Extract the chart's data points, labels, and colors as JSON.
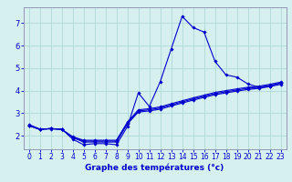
{
  "xlabel": "Graphe des températures (°c)",
  "bg_color": "#d6f0f0",
  "grid_color": "#b0d8d8",
  "line_color": "#0000cc",
  "border_color": "#8888aa",
  "x_ticks": [
    0,
    1,
    2,
    3,
    4,
    5,
    6,
    7,
    8,
    9,
    10,
    11,
    12,
    13,
    14,
    15,
    16,
    17,
    18,
    19,
    20,
    21,
    22,
    23
  ],
  "y_ticks": [
    2,
    3,
    4,
    5,
    6,
    7
  ],
  "ylim": [
    1.4,
    7.7
  ],
  "xlim": [
    -0.5,
    23.5
  ],
  "line1": [
    2.5,
    2.3,
    2.3,
    2.3,
    1.85,
    1.6,
    1.65,
    1.65,
    1.6,
    2.4,
    3.9,
    3.3,
    4.4,
    5.85,
    7.3,
    6.8,
    6.6,
    5.3,
    4.7,
    4.6,
    4.3,
    4.15,
    4.2,
    4.35
  ],
  "line2": [
    2.45,
    2.28,
    2.32,
    2.28,
    1.92,
    1.72,
    1.72,
    1.72,
    1.72,
    2.52,
    3.05,
    3.1,
    3.18,
    3.32,
    3.45,
    3.58,
    3.7,
    3.82,
    3.9,
    3.98,
    4.05,
    4.1,
    4.18,
    4.28
  ],
  "line3": [
    2.45,
    2.28,
    2.32,
    2.28,
    1.94,
    1.76,
    1.76,
    1.76,
    1.76,
    2.56,
    3.1,
    3.15,
    3.23,
    3.37,
    3.5,
    3.63,
    3.75,
    3.87,
    3.95,
    4.03,
    4.1,
    4.15,
    4.23,
    4.33
  ],
  "line4": [
    2.45,
    2.28,
    2.32,
    2.28,
    1.96,
    1.8,
    1.8,
    1.8,
    1.8,
    2.6,
    3.15,
    3.2,
    3.28,
    3.42,
    3.55,
    3.68,
    3.8,
    3.92,
    4.0,
    4.08,
    4.15,
    4.2,
    4.28,
    4.38
  ],
  "tick_fontsize": 5.5,
  "xlabel_fontsize": 6.5,
  "marker_size": 1.8,
  "line_width": 0.8
}
